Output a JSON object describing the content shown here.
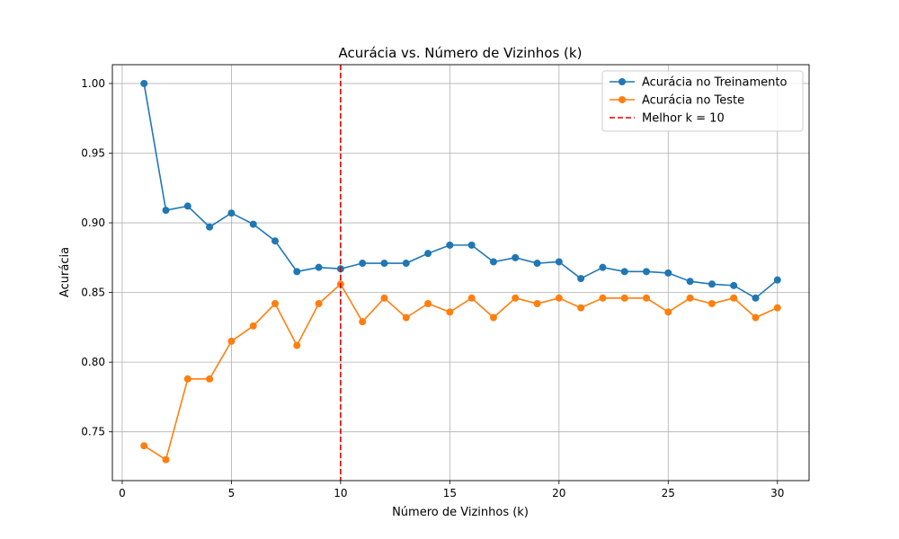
{
  "chart_data": {
    "type": "line",
    "title": "Acurácia vs. Número de Vizinhos (k)",
    "xlabel": "Número de Vizinhos (k)",
    "ylabel": "Acurácia",
    "xlim": [
      -0.45,
      31.45
    ],
    "ylim": [
      0.715,
      1.0135
    ],
    "xticks": [
      0,
      5,
      10,
      15,
      20,
      25,
      30
    ],
    "yticks": [
      0.75,
      0.8,
      0.85,
      0.9,
      0.95,
      1.0
    ],
    "xtick_labels": [
      "0",
      "5",
      "10",
      "15",
      "20",
      "25",
      "30"
    ],
    "ytick_labels": [
      "0.75",
      "0.80",
      "0.85",
      "0.90",
      "0.95",
      "1.00"
    ],
    "grid": true,
    "legend_position": "top-right",
    "x": [
      1,
      2,
      3,
      4,
      5,
      6,
      7,
      8,
      9,
      10,
      11,
      12,
      13,
      14,
      15,
      16,
      17,
      18,
      19,
      20,
      21,
      22,
      23,
      24,
      25,
      26,
      27,
      28,
      29,
      30
    ],
    "series": [
      {
        "name": "Acurácia no Treinamento",
        "color": "#1f77b4",
        "values": [
          1.0,
          0.909,
          0.912,
          0.897,
          0.907,
          0.899,
          0.887,
          0.865,
          0.868,
          0.867,
          0.871,
          0.871,
          0.871,
          0.878,
          0.884,
          0.884,
          0.872,
          0.875,
          0.871,
          0.872,
          0.86,
          0.868,
          0.865,
          0.865,
          0.864,
          0.858,
          0.856,
          0.855,
          0.846,
          0.859
        ]
      },
      {
        "name": "Acurácia no Teste",
        "color": "#ff7f0e",
        "values": [
          0.74,
          0.73,
          0.788,
          0.788,
          0.815,
          0.826,
          0.842,
          0.812,
          0.842,
          0.856,
          0.829,
          0.846,
          0.832,
          0.842,
          0.836,
          0.846,
          0.832,
          0.846,
          0.842,
          0.846,
          0.839,
          0.846,
          0.846,
          0.846,
          0.836,
          0.846,
          0.842,
          0.846,
          0.832,
          0.839
        ]
      }
    ],
    "vline": {
      "x": 10,
      "label": "Melhor k = 10",
      "color": "#e00000"
    }
  }
}
